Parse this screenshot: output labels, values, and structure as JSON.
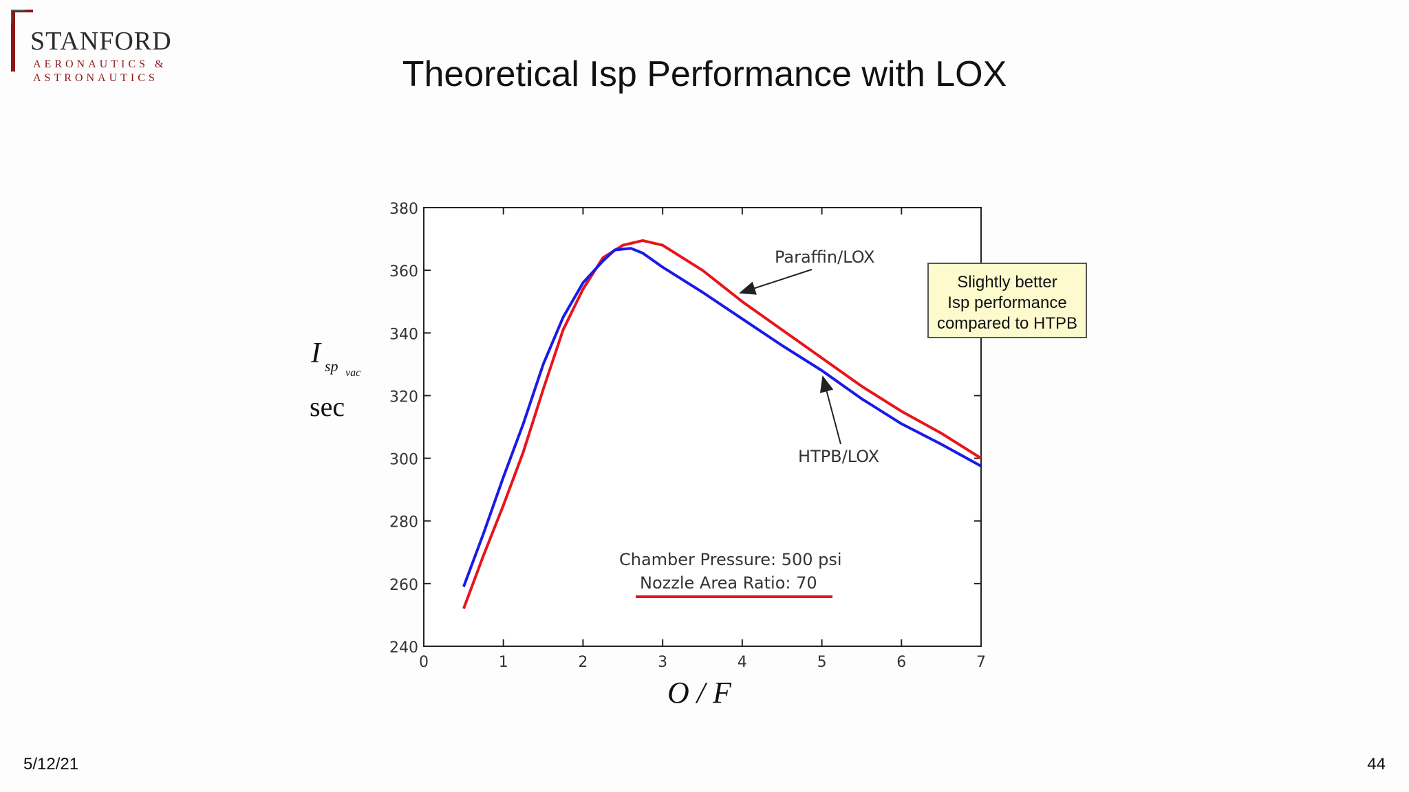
{
  "slide": {
    "title": "Theoretical Isp Performance with LOX",
    "date": "5/12/21",
    "page_number": "44"
  },
  "logo": {
    "name": "STANFORD",
    "dept_line1": "AERONAUTICS &",
    "dept_line2": "ASTRONAUTICS",
    "brand_color": "#8c1515"
  },
  "axis_labels": {
    "y_symbol": "I",
    "y_subscript": "sp",
    "y_subsubscript": "vac",
    "y_unit": "sec",
    "x_label": "O / F"
  },
  "callout": {
    "line1": "Slightly better",
    "line2": "Isp performance",
    "line3": "compared to HTPB"
  },
  "chart_data": {
    "type": "line",
    "xlim": [
      0,
      7
    ],
    "ylim": [
      240,
      380
    ],
    "xticks": [
      0,
      1,
      2,
      3,
      4,
      5,
      6,
      7
    ],
    "yticks": [
      240,
      260,
      280,
      300,
      320,
      340,
      360,
      380
    ],
    "grid": false,
    "legend": "none",
    "series": [
      {
        "name": "Paraffin/LOX",
        "color": "#e8141c",
        "x": [
          0.5,
          0.75,
          1.0,
          1.25,
          1.5,
          1.75,
          2.0,
          2.25,
          2.5,
          2.75,
          3.0,
          3.5,
          4.0,
          4.5,
          5.0,
          5.5,
          6.0,
          6.5,
          7.0
        ],
        "y": [
          252,
          269,
          285,
          302,
          322,
          341,
          354,
          364,
          368,
          369.5,
          368,
          360,
          350,
          341,
          332,
          323,
          315,
          308,
          300
        ]
      },
      {
        "name": "HTPB/LOX",
        "color": "#1a1ae8",
        "x": [
          0.5,
          0.75,
          1.0,
          1.25,
          1.5,
          1.75,
          2.0,
          2.25,
          2.4,
          2.6,
          2.75,
          3.0,
          3.5,
          4.0,
          4.5,
          5.0,
          5.5,
          6.0,
          6.5,
          7.0
        ],
        "y": [
          259,
          276,
          294,
          311,
          330,
          345,
          356,
          363,
          366.5,
          367,
          365.5,
          361,
          353,
          344.5,
          336,
          328,
          319,
          311,
          304.5,
          297.5
        ]
      }
    ],
    "annotations": [
      {
        "text": "Paraffin/LOX",
        "series": "Paraffin/LOX",
        "at_x": 4.0
      },
      {
        "text": "HTPB/LOX",
        "series": "HTPB/LOX",
        "at_x": 5.0
      },
      {
        "text": "Chamber Pressure: 500 psi"
      },
      {
        "text": "Nozzle Area Ratio: 70",
        "underline_color": "#e8141c"
      }
    ]
  }
}
